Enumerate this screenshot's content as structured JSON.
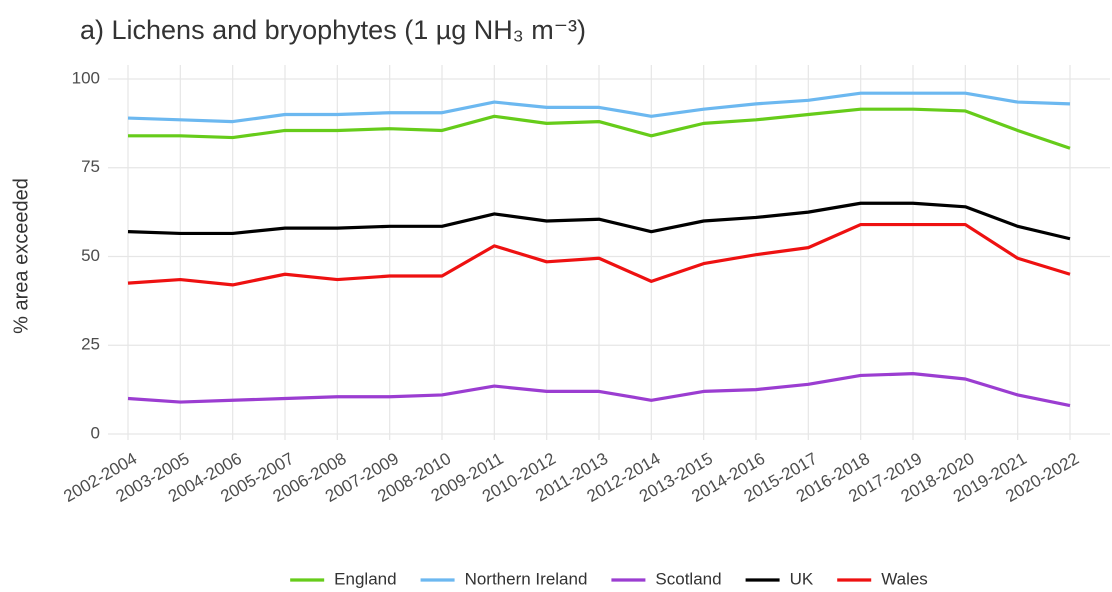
{
  "chart_data": {
    "type": "line",
    "title": "a) Lichens and bryophytes (1 µg NH₃ m⁻³)",
    "y_label": "% area exceeded",
    "categories": [
      "2002-2004",
      "2003-2005",
      "2004-2006",
      "2005-2007",
      "2006-2008",
      "2007-2009",
      "2008-2010",
      "2009-2011",
      "2010-2012",
      "2011-2013",
      "2012-2014",
      "2013-2015",
      "2014-2016",
      "2015-2017",
      "2016-2018",
      "2017-2019",
      "2018-2020",
      "2019-2021",
      "2020-2022"
    ],
    "series": [
      {
        "name": "England",
        "color": "#66cc1a",
        "values": [
          84,
          84,
          83.5,
          85.5,
          85.5,
          86,
          85.5,
          89.5,
          87.5,
          88,
          84,
          87.5,
          88.5,
          90,
          91.5,
          91.5,
          91,
          85.5,
          80.5
        ]
      },
      {
        "name": "Northern Ireland",
        "color": "#6cb8f0",
        "values": [
          89,
          88.5,
          88,
          90,
          90,
          90.5,
          90.5,
          93.5,
          92,
          92,
          89.5,
          91.5,
          93,
          94,
          96,
          96,
          96,
          93.5,
          93
        ]
      },
      {
        "name": "Scotland",
        "color": "#9b3dd1",
        "values": [
          10,
          9,
          9.5,
          10,
          10.5,
          10.5,
          11,
          13.5,
          12,
          12,
          9.5,
          12,
          12.5,
          14,
          16.5,
          17,
          15.5,
          11,
          8
        ]
      },
      {
        "name": "UK",
        "color": "#000000",
        "values": [
          57,
          56.5,
          56.5,
          58,
          58,
          58.5,
          58.5,
          62,
          60,
          60.5,
          57,
          60,
          61,
          62.5,
          65,
          65,
          64,
          58.5,
          55
        ]
      },
      {
        "name": "Wales",
        "color": "#ee1111",
        "values": [
          42.5,
          43.5,
          42,
          45,
          43.5,
          44.5,
          44.5,
          53,
          48.5,
          49.5,
          43,
          48,
          50.5,
          52.5,
          59,
          59,
          59,
          49.5,
          45
        ]
      }
    ],
    "ylim": [
      0,
      100
    ],
    "yticks": [
      0,
      25,
      50,
      75,
      100
    ],
    "grid": true,
    "legend": "bottom"
  }
}
